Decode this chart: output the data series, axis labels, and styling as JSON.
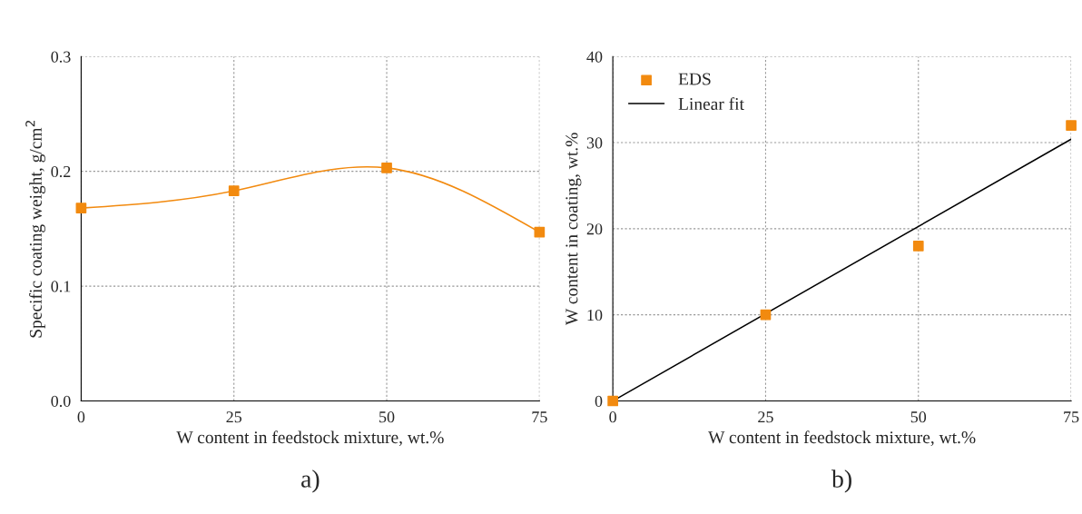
{
  "chart_data": [
    {
      "type": "line",
      "xlabel": "W content in feedstock mixture, wt.%",
      "ylabel": "Specific coating weight, g/cm$^{2}$",
      "annotations": [
        "a)"
      ],
      "x": [
        0,
        25,
        50,
        75
      ],
      "xlim": [
        0,
        75
      ],
      "xticks": [
        0,
        25,
        50,
        75
      ],
      "ylim": [
        0,
        0.3
      ],
      "yticks": [
        {
          "value": 0,
          "label": "0.0"
        },
        0.1,
        0.2,
        0.3
      ],
      "grid": true,
      "marker": "square",
      "series": [
        {
          "color": "#f28a0f",
          "values": [
            0.168,
            0.183,
            0.203,
            0.147
          ]
        }
      ]
    },
    {
      "type": "scatter",
      "xlabel": "W content in feedstock mixture, wt.%",
      "ylabel": "W content in coating, wt.%",
      "annotations": [
        "b)"
      ],
      "x": [
        0,
        25,
        50,
        75
      ],
      "xlim": [
        0,
        75
      ],
      "xticks": [
        0,
        25,
        50,
        75
      ],
      "ylim": [
        0,
        40
      ],
      "yticks": [
        0,
        10,
        20,
        30,
        40
      ],
      "grid": true,
      "marker": "square",
      "legend": "top left",
      "series": [
        {
          "name": "EDS",
          "color": "#f28a0f",
          "values": [
            0,
            10,
            18,
            32
          ]
        },
        {
          "name": "Linear fit",
          "type": "line",
          "color": "#000000",
          "marker": "none",
          "x": [
            0,
            75
          ],
          "values": [
            0,
            30.4
          ]
        }
      ]
    }
  ]
}
